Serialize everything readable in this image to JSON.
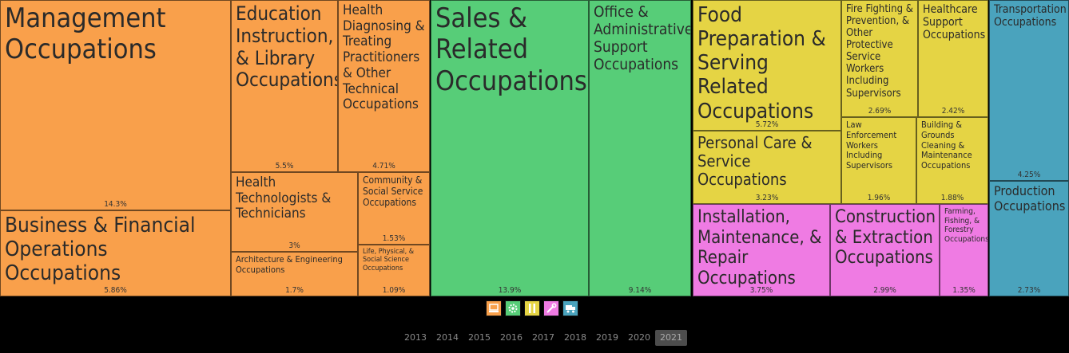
{
  "chart_data": {
    "type": "treemap",
    "groups": [
      {
        "name": "group-1",
        "color": "#f9a04b"
      },
      {
        "name": "group-2",
        "color": "#57cd78"
      },
      {
        "name": "group-3",
        "color": "#e5d444"
      },
      {
        "name": "group-4",
        "color": "#ef7be3"
      },
      {
        "name": "group-5",
        "color": "#4aa3bd"
      }
    ],
    "cells": [
      {
        "group": 0,
        "label": "Management Occupations",
        "value": 14.3,
        "pct": "14.3%"
      },
      {
        "group": 0,
        "label": "Business & Financial Operations Occupations",
        "value": 5.86,
        "pct": "5.86%"
      },
      {
        "group": 0,
        "label": "Education Instruction, & Library Occupations",
        "value": 5.5,
        "pct": "5.5%"
      },
      {
        "group": 0,
        "label": "Health Diagnosing & Treating Practitioners & Other Technical Occupations",
        "value": 4.71,
        "pct": "4.71%"
      },
      {
        "group": 0,
        "label": "Health Technologists & Technicians",
        "value": 3,
        "pct": "3%"
      },
      {
        "group": 0,
        "label": "Community & Social Service Occupations",
        "value": 1.53,
        "pct": "1.53%"
      },
      {
        "group": 0,
        "label": "Architecture & Engineering Occupations",
        "value": 1.7,
        "pct": "1.7%"
      },
      {
        "group": 0,
        "label": "Life, Physical, & Social Science Occupations",
        "value": 1.09,
        "pct": "1.09%"
      },
      {
        "group": 1,
        "label": "Sales & Related Occupations",
        "value": 13.9,
        "pct": "13.9%"
      },
      {
        "group": 1,
        "label": "Office & Administrative Support Occupations",
        "value": 9.14,
        "pct": "9.14%"
      },
      {
        "group": 2,
        "label": "Food Preparation & Serving Related Occupations",
        "value": 5.72,
        "pct": "5.72%"
      },
      {
        "group": 2,
        "label": "Fire Fighting & Prevention, & Other Protective Service Workers Including Supervisors",
        "value": 2.69,
        "pct": "2.69%"
      },
      {
        "group": 2,
        "label": "Healthcare Support Occupations",
        "value": 2.42,
        "pct": "2.42%"
      },
      {
        "group": 2,
        "label": "Personal Care & Service Occupations",
        "value": 3.23,
        "pct": "3.23%"
      },
      {
        "group": 2,
        "label": "Law Enforcement Workers Including Supervisors",
        "value": 1.96,
        "pct": "1.96%"
      },
      {
        "group": 2,
        "label": "Building & Grounds Cleaning & Maintenance Occupations",
        "value": 1.88,
        "pct": "1.88%"
      },
      {
        "group": 3,
        "label": "Installation, Maintenance, & Repair Occupations",
        "value": 3.75,
        "pct": "3.75%"
      },
      {
        "group": 3,
        "label": "Construction & Extraction Occupations",
        "value": 2.99,
        "pct": "2.99%"
      },
      {
        "group": 3,
        "label": "Farming, Fishing, & Forestry Occupations",
        "value": 1.35,
        "pct": "1.35%"
      },
      {
        "group": 4,
        "label": "Transportation Occupations",
        "value": 4.25,
        "pct": "4.25%"
      },
      {
        "group": 4,
        "label": "Production Occupations",
        "value": 2.73,
        "pct": "2.73%"
      }
    ]
  },
  "legend_icons": [
    {
      "name": "laptop-icon",
      "color": "#f9a04b"
    },
    {
      "name": "cog-icon",
      "color": "#57cd78"
    },
    {
      "name": "utensils-icon",
      "color": "#e5d444"
    },
    {
      "name": "wrench-icon",
      "color": "#ef7be3"
    },
    {
      "name": "truck-icon",
      "color": "#4aa3bd"
    }
  ],
  "years": [
    "2013",
    "2014",
    "2015",
    "2016",
    "2017",
    "2018",
    "2019",
    "2020",
    "2021"
  ],
  "selected_year": "2021"
}
